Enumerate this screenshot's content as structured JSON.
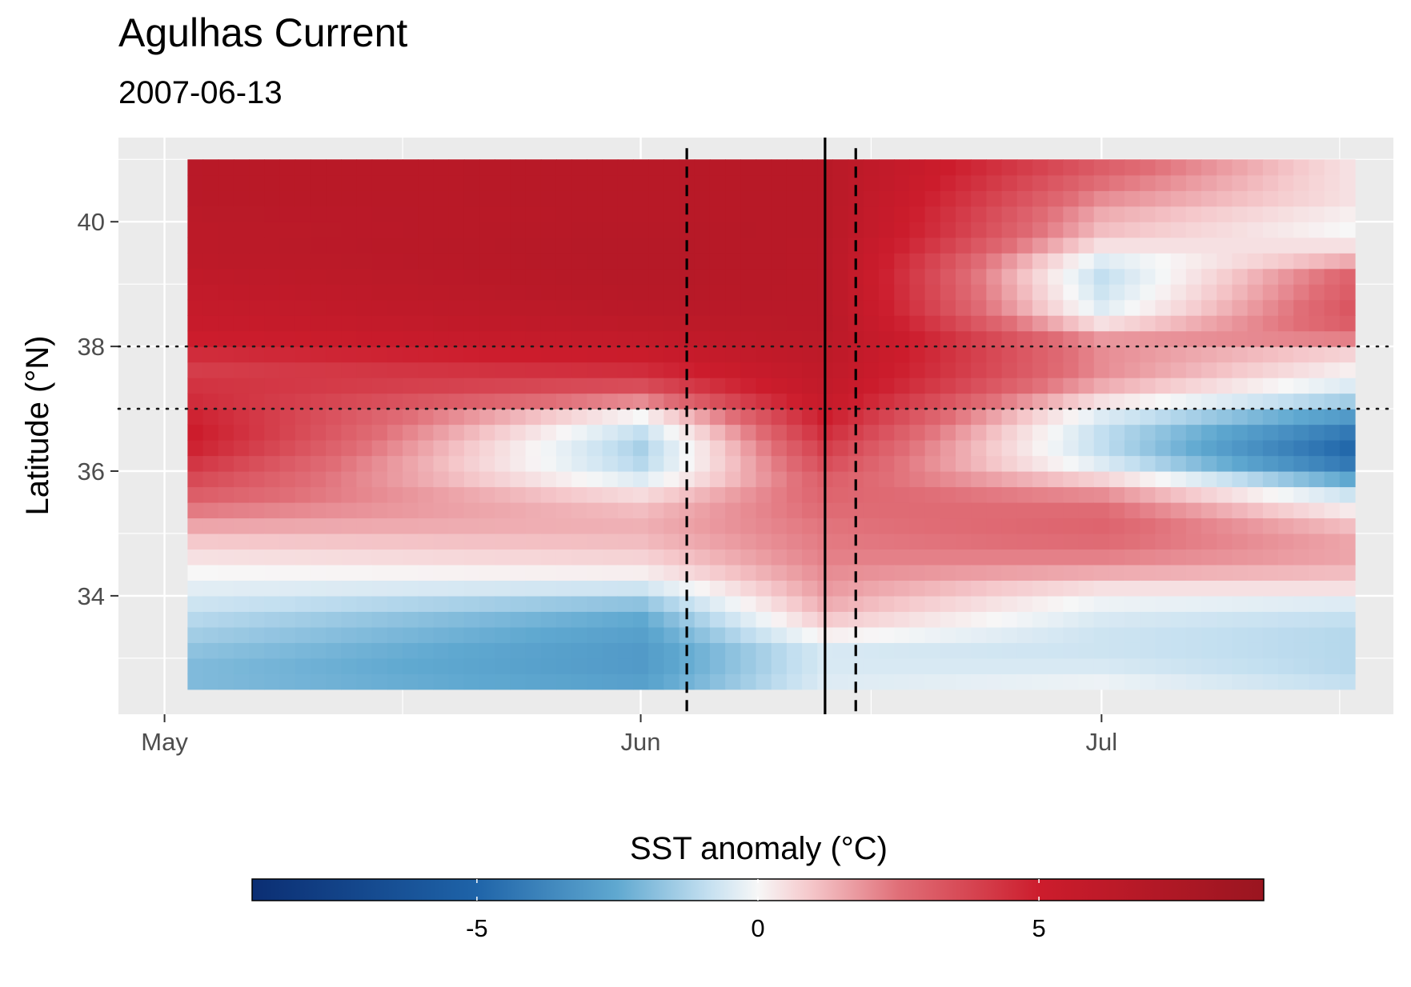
{
  "chart_data": {
    "type": "heatmap",
    "title": "Agulhas Current",
    "subtitle": "2007-06-13",
    "xlabel": "",
    "ylabel": "Latitude (°N)",
    "x_ticks": [
      {
        "label": "May",
        "date": "2007-05-01"
      },
      {
        "label": "Jun",
        "date": "2007-06-01"
      },
      {
        "label": "Jul",
        "date": "2007-07-01"
      }
    ],
    "y_ticks": [
      34,
      36,
      38,
      40
    ],
    "xlim": [
      "2007-04-28",
      "2007-07-20"
    ],
    "ylim": [
      32.1,
      41.35
    ],
    "grid": true,
    "event_date": "2007-06-13",
    "window_dates": [
      "2007-06-04",
      "2007-06-15"
    ],
    "latitude_band": [
      37,
      38
    ],
    "cells": {
      "lon_range": [
        32.5,
        41
      ],
      "time_range": [
        "2007-05-03",
        "2007-07-17"
      ],
      "n_days": 76,
      "lat_step": 0.25,
      "day_columns": [
        {
          "date": "2007-05-03",
          "anomalies": [
            -2.0,
            -2.0,
            -1.8,
            -1.5,
            -1.2,
            -0.8,
            -0.4,
            0.0,
            0.5,
            1.0,
            1.6,
            2.3,
            3.0,
            3.6,
            4.2,
            4.8,
            5.0,
            4.8,
            4.5,
            4.3,
            4.0,
            4.5,
            5.0,
            5.4,
            5.6,
            5.8,
            6.0,
            6.2,
            6.3,
            6.3,
            6.4,
            6.5,
            6.5,
            6.5
          ]
        },
        {
          "date": "2007-06-01",
          "anomalies": [
            -2.8,
            -3.0,
            -3.0,
            -2.8,
            -2.5,
            -1.8,
            -0.8,
            0.2,
            0.8,
            1.2,
            1.4,
            1.2,
            0.6,
            -0.5,
            -1.2,
            -1.4,
            -1.0,
            0.0,
            2.0,
            3.5,
            4.5,
            5.2,
            5.8,
            6.2,
            6.5,
            6.7,
            6.8,
            6.8,
            6.8,
            6.7,
            6.6,
            6.6,
            6.6,
            6.6
          ]
        },
        {
          "date": "2007-06-13",
          "anomalies": [
            -0.5,
            -0.6,
            -0.6,
            0.2,
            1.0,
            1.5,
            1.8,
            2.0,
            2.2,
            2.3,
            2.4,
            2.6,
            2.8,
            3.0,
            3.5,
            4.0,
            4.5,
            5.0,
            5.5,
            5.8,
            6.0,
            6.2,
            6.4,
            6.5,
            6.5,
            6.5,
            6.5,
            6.5,
            6.5,
            6.6,
            6.6,
            6.6,
            6.6,
            6.6
          ]
        },
        {
          "date": "2007-07-01",
          "anomalies": [
            -0.2,
            -0.6,
            -0.8,
            -0.8,
            -0.6,
            -0.2,
            0.5,
            1.5,
            2.2,
            2.6,
            2.8,
            2.6,
            2.0,
            0.8,
            -0.5,
            -1.0,
            -1.0,
            -0.5,
            0.5,
            1.5,
            2.0,
            2.0,
            1.8,
            0.5,
            -0.5,
            -0.8,
            -1.0,
            -0.5,
            0.5,
            1.2,
            1.5,
            2.0,
            2.5,
            3.0
          ]
        },
        {
          "date": "2007-07-17",
          "anomalies": [
            -1.0,
            -1.2,
            -1.2,
            -1.2,
            -1.0,
            -0.5,
            0.5,
            1.2,
            1.6,
            1.6,
            1.2,
            0.3,
            -0.8,
            -2.5,
            -4.2,
            -4.8,
            -4.2,
            -3.0,
            -1.5,
            -0.5,
            0.2,
            0.8,
            2.2,
            3.0,
            3.2,
            3.0,
            2.8,
            1.5,
            0.5,
            0.0,
            0.2,
            0.5,
            0.5,
            0.5
          ]
        }
      ]
    },
    "legend": {
      "title": "SST anomaly (°C)",
      "placement": "bottom",
      "range": [
        -9,
        9
      ],
      "ticks": [
        -5,
        0,
        5
      ],
      "tick_labels": [
        "-5",
        "0",
        "5"
      ],
      "colors": {
        "min": "#0b2e73",
        "mid": "#f7f7f7",
        "max": "#9a1520"
      }
    }
  }
}
